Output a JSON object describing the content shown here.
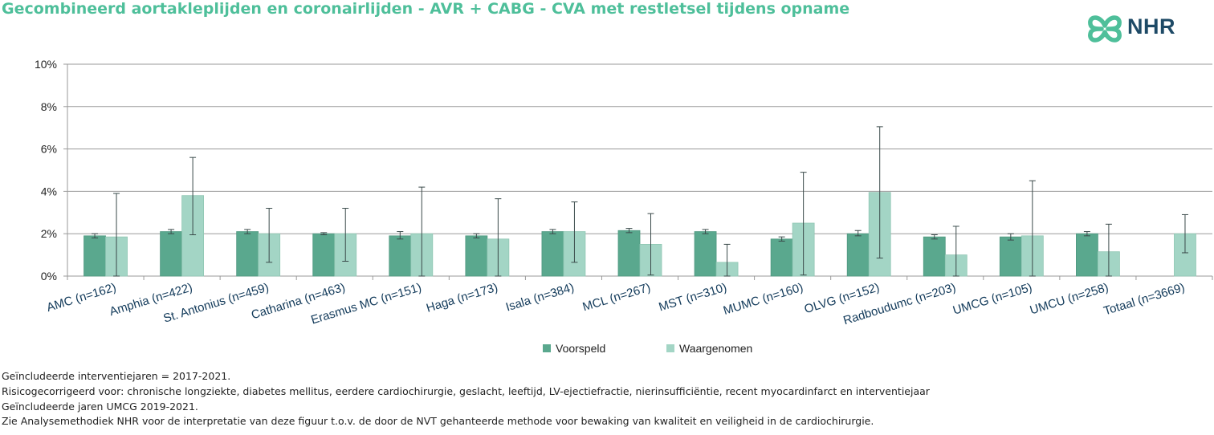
{
  "title": "Gecombineerd aortakleplijden en coronairlijden - AVR + CABG - CVA met restletsel tijdens opname",
  "logo": {
    "text": "NHR",
    "icon": "nhr-clover-icon"
  },
  "colors": {
    "voorspeld": "#5aa88e",
    "waargenomen": "#a3d5c5",
    "title": "#4ebf9a",
    "logo": "#1e4a66",
    "logo_icon": "#4ebf9a"
  },
  "chart_data": {
    "type": "bar",
    "ylim": [
      0,
      10
    ],
    "yticks": [
      0,
      2,
      4,
      6,
      8,
      10
    ],
    "ytick_labels": [
      "0%",
      "2%",
      "4%",
      "6%",
      "8%",
      "10%"
    ],
    "grid": true,
    "legend_position": "bottom",
    "categories": [
      "AMC (n=162)",
      "Amphia (n=422)",
      "St. Antonius (n=459)",
      "Catharina (n=463)",
      "Erasmus MC (n=151)",
      "Haga (n=173)",
      "Isala (n=384)",
      "MCL (n=267)",
      "MST (n=310)",
      "MUMC (n=160)",
      "OLVG (n=152)",
      "Radboudumc (n=203)",
      "UMCG (n=105)",
      "UMCU (n=258)",
      "Totaal (n=3669)"
    ],
    "series": [
      {
        "name": "Voorspeld",
        "values": [
          1.9,
          2.1,
          2.1,
          2.0,
          1.9,
          1.9,
          2.1,
          2.15,
          2.1,
          1.75,
          2.0,
          1.85,
          1.85,
          2.0,
          null
        ],
        "error_low": [
          1.8,
          2.0,
          2.0,
          1.95,
          1.75,
          1.8,
          2.0,
          2.05,
          2.0,
          1.65,
          1.9,
          1.75,
          1.7,
          1.9,
          null
        ],
        "error_high": [
          2.0,
          2.2,
          2.2,
          2.05,
          2.1,
          2.0,
          2.2,
          2.25,
          2.2,
          1.85,
          2.15,
          1.95,
          2.0,
          2.1,
          null
        ]
      },
      {
        "name": "Waargenomen",
        "values": [
          1.85,
          3.8,
          2.0,
          2.0,
          2.0,
          1.75,
          2.1,
          1.5,
          0.65,
          2.5,
          3.95,
          1.0,
          1.9,
          1.15,
          2.0
        ],
        "error_low": [
          0.0,
          1.95,
          0.65,
          0.7,
          0.0,
          0.0,
          0.65,
          0.05,
          0.0,
          0.05,
          0.85,
          0.0,
          0.0,
          0.0,
          1.1
        ],
        "error_high": [
          3.9,
          5.6,
          3.2,
          3.2,
          4.2,
          3.65,
          3.5,
          2.95,
          1.5,
          4.9,
          7.05,
          2.35,
          4.5,
          2.45,
          2.9
        ]
      }
    ]
  },
  "notes": [
    "Geïncludeerde interventiejaren = 2017-2021.",
    "Risicogecorrigeerd voor: chronische longziekte, diabetes mellitus, eerdere cardiochirurgie, geslacht, leeftijd, LV-ejectiefractie, nierinsufficiëntie, recent myocardinfarct en interventiejaar",
    "Geïncludeerde jaren UMCG 2019-2021.",
    "Zie Analysemethodiek NHR voor de interpretatie van deze figuur t.o.v. de door de NVT gehanteerde methode voor bewaking van kwaliteit en veiligheid in de cardiochirurgie."
  ]
}
